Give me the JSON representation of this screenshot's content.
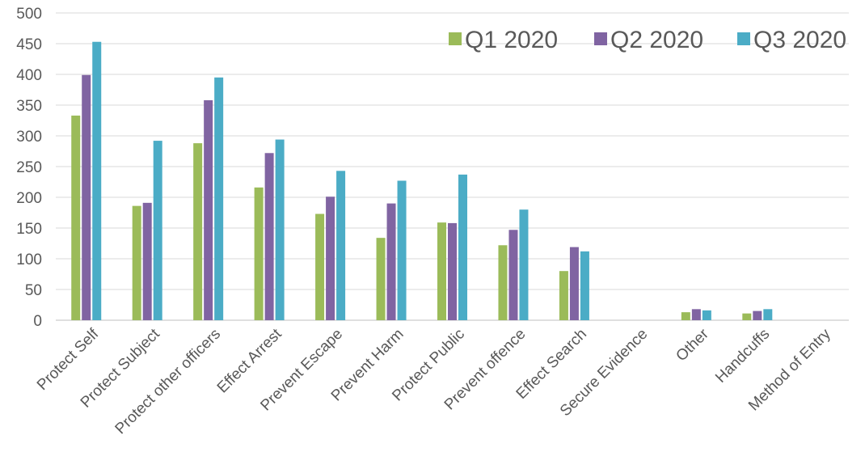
{
  "chart_data": {
    "type": "bar",
    "title": "",
    "xlabel": "",
    "ylabel": "",
    "ylim": [
      0,
      500
    ],
    "yticks": [
      0,
      50,
      100,
      150,
      200,
      250,
      300,
      350,
      400,
      450,
      500
    ],
    "grid": true,
    "legend_position": "top-right",
    "categories": [
      "Protect Self",
      "Protect Subject",
      "Protect other officers",
      "Effect Arrest",
      "Prevent Escape",
      "Prevent Harm",
      "Protect Public",
      "Prevent offence",
      "Effect Search",
      "Secure Evidence",
      "Other",
      "Handcuffs",
      "Method of Entry"
    ],
    "series": [
      {
        "name": "Q1 2020",
        "color": "#9BBB59",
        "values": [
          333,
          186,
          288,
          216,
          173,
          134,
          159,
          122,
          80,
          0,
          13,
          11,
          0
        ]
      },
      {
        "name": "Q2 2020",
        "color": "#8064A2",
        "values": [
          399,
          191,
          358,
          272,
          201,
          190,
          158,
          147,
          119,
          0,
          18,
          15,
          0
        ]
      },
      {
        "name": "Q3 2020",
        "color": "#4BACC6",
        "values": [
          453,
          292,
          395,
          294,
          243,
          227,
          237,
          180,
          112,
          0,
          16,
          18,
          0
        ]
      }
    ]
  }
}
